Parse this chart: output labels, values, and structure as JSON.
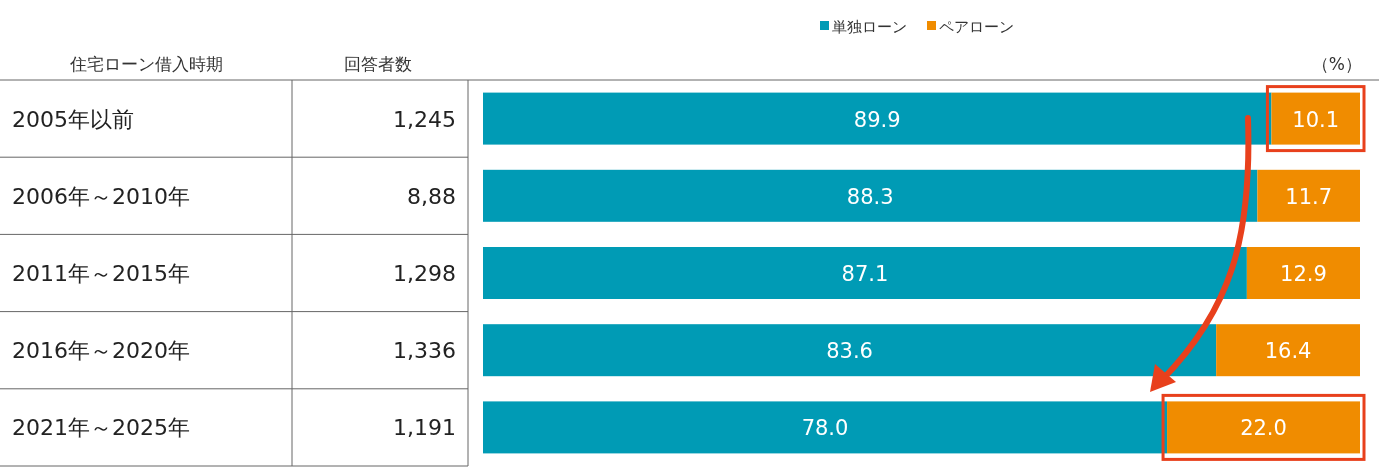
{
  "chart_data": {
    "type": "bar",
    "orientation": "horizontal",
    "stacked": true,
    "legend": "top",
    "ylabel": "住宅ローン借入時期",
    "y2label": "回答者数",
    "categories": [
      "2005年以前",
      "2006年～2010年",
      "2011年～2015年",
      "2016年～2020年",
      "2021年～2025年"
    ],
    "y2_categories": [
      "1,245",
      "8,88",
      "1,298",
      "1,336",
      "1,191"
    ],
    "series": [
      {
        "name": "単独ローン",
        "color": "#009bb5",
        "values": [
          89.9,
          88.3,
          87.1,
          83.6,
          78.0
        ],
        "value_labels": [
          "89.9",
          "88.3",
          "87.1",
          "83.6",
          "78.0"
        ]
      },
      {
        "name": "ペアローン",
        "color": "#f08c00",
        "values": [
          10.1,
          11.7,
          12.9,
          16.4,
          22.0
        ],
        "value_labels": [
          "10.1",
          "11.7",
          "12.9",
          "16.4",
          "22.0"
        ]
      }
    ],
    "annotations": [
      "（%）"
    ]
  }
}
